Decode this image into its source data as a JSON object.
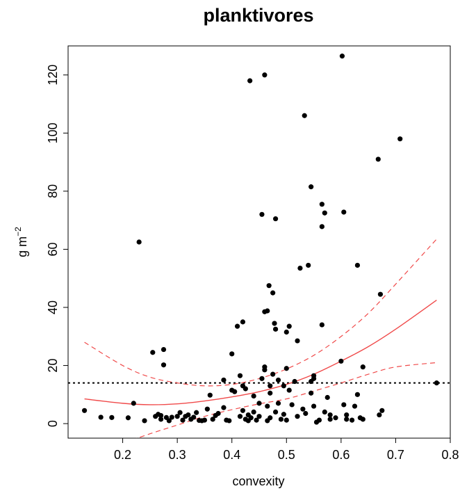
{
  "chart_data": {
    "type": "scatter",
    "title": "planktivores",
    "xlabel": "convexity",
    "ylabel_base": "g m",
    "ylabel_sup": "−2",
    "xlim": [
      0.1,
      0.8
    ],
    "ylim": [
      -5,
      130
    ],
    "xticks": [
      0.2,
      0.3,
      0.4,
      0.5,
      0.6,
      0.7,
      0.8
    ],
    "xtick_labels": [
      "0.2",
      "0.3",
      "0.4",
      "0.5",
      "0.6",
      "0.7",
      "0.8"
    ],
    "yticks": [
      0,
      20,
      40,
      60,
      80,
      100,
      120
    ],
    "ytick_labels": [
      "0",
      "20",
      "40",
      "60",
      "80",
      "100",
      "120"
    ],
    "grid": false,
    "colors": {
      "points": "#000000",
      "fit": "#f04a4a",
      "reference": "#000000"
    },
    "reference_line": {
      "y": 14,
      "style": "dotted"
    },
    "points": [
      [
        0.13,
        4.5
      ],
      [
        0.16,
        2.2
      ],
      [
        0.18,
        2.1
      ],
      [
        0.21,
        2.0
      ],
      [
        0.22,
        7.0
      ],
      [
        0.23,
        62.5
      ],
      [
        0.24,
        1.0
      ],
      [
        0.255,
        24.5
      ],
      [
        0.26,
        2.5
      ],
      [
        0.265,
        3.2
      ],
      [
        0.27,
        1.5
      ],
      [
        0.27,
        2.8
      ],
      [
        0.275,
        25.5
      ],
      [
        0.275,
        20.2
      ],
      [
        0.28,
        2.1
      ],
      [
        0.285,
        1.0
      ],
      [
        0.29,
        2.2
      ],
      [
        0.3,
        2.5
      ],
      [
        0.305,
        3.8
      ],
      [
        0.31,
        1.2
      ],
      [
        0.315,
        2.5
      ],
      [
        0.32,
        3.0
      ],
      [
        0.325,
        1.5
      ],
      [
        0.33,
        2.2
      ],
      [
        0.335,
        3.8
      ],
      [
        0.34,
        1.1
      ],
      [
        0.345,
        1.0
      ],
      [
        0.35,
        1.2
      ],
      [
        0.355,
        5.0
      ],
      [
        0.36,
        9.8
      ],
      [
        0.365,
        1.5
      ],
      [
        0.37,
        2.8
      ],
      [
        0.375,
        3.5
      ],
      [
        0.385,
        15.0
      ],
      [
        0.385,
        5.5
      ],
      [
        0.39,
        1.2
      ],
      [
        0.395,
        1.0
      ],
      [
        0.4,
        11.5
      ],
      [
        0.4,
        24.0
      ],
      [
        0.405,
        11.0
      ],
      [
        0.41,
        33.5
      ],
      [
        0.415,
        16.5
      ],
      [
        0.415,
        2.5
      ],
      [
        0.42,
        35.0
      ],
      [
        0.42,
        13.0
      ],
      [
        0.42,
        4.5
      ],
      [
        0.425,
        12.0
      ],
      [
        0.425,
        1.5
      ],
      [
        0.43,
        1.0
      ],
      [
        0.43,
        3.0
      ],
      [
        0.433,
        118.0
      ],
      [
        0.435,
        2.0
      ],
      [
        0.44,
        9.5
      ],
      [
        0.44,
        4.0
      ],
      [
        0.445,
        1.2
      ],
      [
        0.45,
        7.0
      ],
      [
        0.45,
        2.5
      ],
      [
        0.455,
        72.0
      ],
      [
        0.455,
        15.5
      ],
      [
        0.46,
        120.0
      ],
      [
        0.46,
        19.5
      ],
      [
        0.46,
        18.5
      ],
      [
        0.46,
        38.5
      ],
      [
        0.465,
        38.8
      ],
      [
        0.465,
        6.0
      ],
      [
        0.465,
        1.0
      ],
      [
        0.468,
        47.5
      ],
      [
        0.47,
        13.0
      ],
      [
        0.47,
        10.5
      ],
      [
        0.47,
        2.0
      ],
      [
        0.475,
        45.0
      ],
      [
        0.475,
        17.0
      ],
      [
        0.478,
        34.5
      ],
      [
        0.48,
        32.5
      ],
      [
        0.48,
        70.5
      ],
      [
        0.48,
        4.0
      ],
      [
        0.485,
        15.0
      ],
      [
        0.485,
        7.0
      ],
      [
        0.49,
        1.5
      ],
      [
        0.495,
        13.0
      ],
      [
        0.495,
        3.2
      ],
      [
        0.5,
        31.5
      ],
      [
        0.5,
        19.0
      ],
      [
        0.5,
        1.2
      ],
      [
        0.505,
        33.5
      ],
      [
        0.505,
        11.5
      ],
      [
        0.51,
        6.5
      ],
      [
        0.515,
        14.5
      ],
      [
        0.52,
        2.5
      ],
      [
        0.52,
        28.5
      ],
      [
        0.525,
        53.5
      ],
      [
        0.53,
        5.0
      ],
      [
        0.533,
        106.0
      ],
      [
        0.535,
        3.5
      ],
      [
        0.54,
        54.5
      ],
      [
        0.545,
        81.5
      ],
      [
        0.545,
        10.5
      ],
      [
        0.545,
        14.5
      ],
      [
        0.55,
        15.5
      ],
      [
        0.55,
        16.5
      ],
      [
        0.55,
        6.0
      ],
      [
        0.555,
        0.5
      ],
      [
        0.56,
        1.2
      ],
      [
        0.565,
        75.5
      ],
      [
        0.565,
        67.8
      ],
      [
        0.565,
        34.0
      ],
      [
        0.57,
        72.5
      ],
      [
        0.57,
        4.0
      ],
      [
        0.575,
        9.0
      ],
      [
        0.58,
        1.5
      ],
      [
        0.58,
        3.0
      ],
      [
        0.59,
        2.0
      ],
      [
        0.6,
        21.5
      ],
      [
        0.602,
        126.5
      ],
      [
        0.605,
        72.8
      ],
      [
        0.605,
        6.5
      ],
      [
        0.61,
        3.0
      ],
      [
        0.61,
        1.5
      ],
      [
        0.62,
        1.2
      ],
      [
        0.625,
        6.0
      ],
      [
        0.63,
        54.5
      ],
      [
        0.63,
        10.0
      ],
      [
        0.635,
        2.0
      ],
      [
        0.64,
        19.5
      ],
      [
        0.64,
        1.5
      ],
      [
        0.668,
        91.0
      ],
      [
        0.67,
        3.0
      ],
      [
        0.672,
        44.5
      ],
      [
        0.675,
        4.5
      ],
      [
        0.708,
        98.0
      ],
      [
        0.775,
        14.0
      ]
    ],
    "fit": {
      "x": [
        0.13,
        0.2,
        0.25,
        0.3,
        0.35,
        0.4,
        0.45,
        0.5,
        0.55,
        0.6,
        0.65,
        0.7,
        0.775
      ],
      "y": [
        8.5,
        7.0,
        6.5,
        6.8,
        7.8,
        9.2,
        11.0,
        13.5,
        17.0,
        21.5,
        26.5,
        32.5,
        42.5
      ]
    },
    "ci_upper": {
      "x": [
        0.13,
        0.2,
        0.25,
        0.3,
        0.35,
        0.4,
        0.45,
        0.5,
        0.55,
        0.6,
        0.65,
        0.7,
        0.775
      ],
      "y": [
        28.0,
        20.0,
        16.0,
        14.0,
        13.0,
        13.5,
        15.5,
        18.8,
        23.5,
        30.0,
        38.0,
        48.0,
        63.5
      ]
    },
    "ci_lower": {
      "x": [
        0.13,
        0.18,
        0.25,
        0.3,
        0.35,
        0.4,
        0.45,
        0.5,
        0.55,
        0.6,
        0.65,
        0.7,
        0.775
      ],
      "y": [
        -11.0,
        -8.0,
        -3.5,
        -0.5,
        2.5,
        4.8,
        6.8,
        8.5,
        11.2,
        14.0,
        17.0,
        19.5,
        21.0
      ]
    }
  }
}
